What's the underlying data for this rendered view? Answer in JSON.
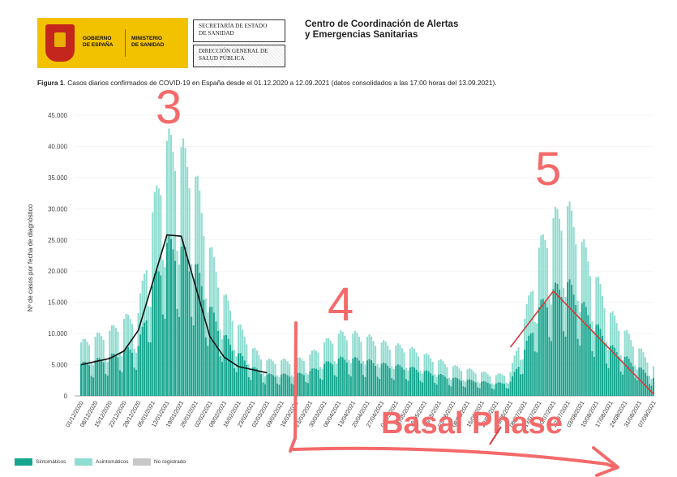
{
  "header": {
    "logo_gov": "GOBIERNO\nDE ESPAÑA",
    "logo_min": "MINISTERIO\nDE SANIDAD",
    "box1": "SECRETARÍA DE ESTADO\nDE SANIDAD",
    "box2": "DIRECCIÓN GENERAL DE\nSALUD PÚBLICA",
    "center": "Centro de Coordinación de Alertas\ny Emergencias Sanitarias"
  },
  "caption": {
    "label": "Figura 1",
    "text": ". Casos diarios confirmados de COVID-19 en España desde el 01.12.2020 a 12.09.2021 (datos consolidados a las 17:00 horas del 13.09.2021)."
  },
  "colors": {
    "sintomaticos": "#17a58e",
    "asintomaticos": "#8fdcd0",
    "no_registrado": "#c8c8c8",
    "annotation": "#f46a6a",
    "line_black": "#111111",
    "line_red": "#d63a3a"
  },
  "chart_data": {
    "type": "bar",
    "stacked": true,
    "ylabel": "Nº de casos por fecha de diagnóstico",
    "ylim": [
      0,
      45000
    ],
    "yticks": [
      "0",
      "5.000",
      "10.000",
      "15.000",
      "20.000",
      "25.000",
      "30.000",
      "35.000",
      "40.000",
      "45.000"
    ],
    "x_ticks": [
      "01/12/2020",
      "08/12/2020",
      "15/12/2020",
      "22/12/2020",
      "29/12/2020",
      "05/01/2021",
      "12/01/2021",
      "19/01/2021",
      "26/01/2021",
      "02/02/2021",
      "09/02/2021",
      "16/02/2021",
      "23/02/2021",
      "02/03/2021",
      "09/03/2021",
      "16/03/2021",
      "23/03/2021",
      "30/03/2021",
      "06/04/2021",
      "13/04/2021",
      "20/04/2021",
      "27/04/2021",
      "04/05/2021",
      "11/05/2021",
      "18/05/2021",
      "25/05/2021",
      "01/06/2021",
      "08/06/2021",
      "15/06/2021",
      "22/06/2021",
      "29/06/2021",
      "06/07/2021",
      "13/07/2021",
      "20/07/2021",
      "27/07/2021",
      "03/08/2021",
      "10/08/2021",
      "17/08/2021",
      "24/08/2021",
      "31/08/2021",
      "07/09/2021"
    ],
    "weekly_totals": [
      9000,
      10000,
      11000,
      13000,
      14000,
      31000,
      43000,
      42000,
      37000,
      25000,
      17000,
      12000,
      8000,
      6000,
      6000,
      6000,
      7000,
      9000,
      10500,
      10500,
      10000,
      9000,
      8500,
      8000,
      7000,
      6000,
      5000,
      4500,
      4000,
      3500,
      4000,
      13000,
      25000,
      30000,
      32000,
      26000,
      20000,
      14000,
      11000,
      8000,
      5000
    ],
    "symptomatic_fraction": 0.6,
    "series": [
      {
        "name": "Sintomáticos"
      },
      {
        "name": "Asintomáticos"
      },
      {
        "name": "No registrado"
      }
    ],
    "legend_position": "bottom-left",
    "annotations": [
      {
        "text": "3"
      },
      {
        "text": "4"
      },
      {
        "text": "5"
      },
      {
        "text": "Basal Phase"
      }
    ],
    "trend_black": [
      [
        "01/12/2020",
        5000
      ],
      [
        "15/12/2020",
        6000
      ],
      [
        "22/12/2020",
        7200
      ],
      [
        "29/12/2020",
        10500
      ],
      [
        "12/01/2021",
        25800
      ],
      [
        "19/01/2021",
        25600
      ],
      [
        "02/02/2021",
        9500
      ],
      [
        "09/02/2021",
        6200
      ],
      [
        "16/02/2021",
        4700
      ],
      [
        "02/03/2021",
        3700
      ]
    ],
    "trend_red": [
      [
        "29/06/2021",
        7800
      ],
      [
        "20/07/2021",
        16800
      ],
      [
        "07/09/2021",
        300
      ]
    ]
  }
}
